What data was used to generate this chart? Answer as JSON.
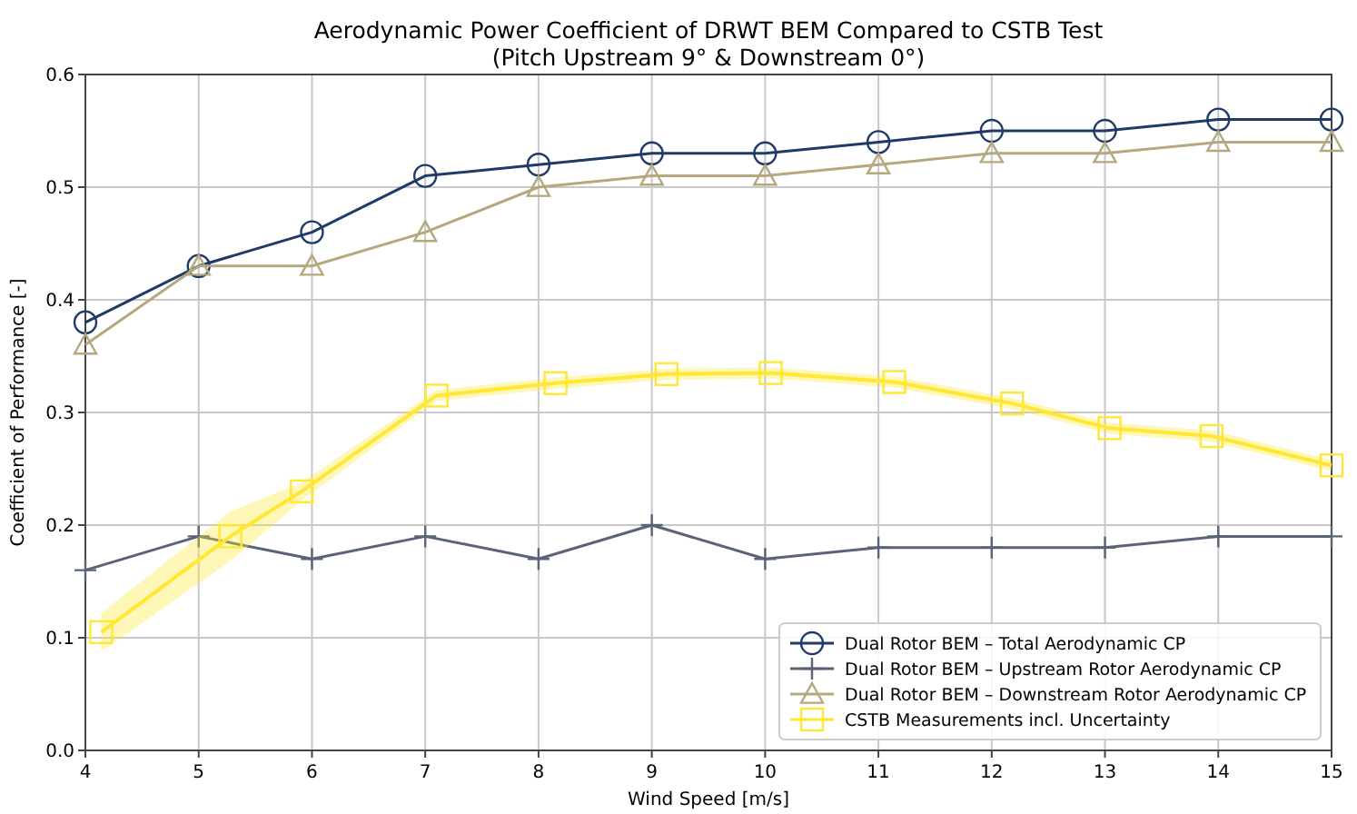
{
  "chart_data": {
    "type": "line",
    "title": "Aerodynamic Power Coefficient of DRWT BEM Compared to CSTB Test",
    "subtitle": "(Pitch Upstream 9° & Downstream 0°)",
    "xlabel": "Wind Speed [m/s]",
    "ylabel": "Coefficient of Performance [-]",
    "x": [
      4,
      5,
      6,
      7,
      8,
      9,
      10,
      11,
      12,
      13,
      14,
      15
    ],
    "xlim": [
      4,
      15
    ],
    "xticks": [
      4,
      5,
      6,
      7,
      8,
      9,
      10,
      11,
      12,
      13,
      14,
      15
    ],
    "ylim": [
      0,
      0.6
    ],
    "yticks": [
      {
        "value": 0,
        "label": "0.0"
      },
      0.1,
      0.2,
      0.3,
      0.4,
      0.5,
      0.6
    ],
    "grid": true,
    "legend": "bottom right",
    "series": [
      {
        "name": "Dual Rotor BEM – Total Aerodynamic CP",
        "color": "#1f3a68",
        "marker": "circle",
        "values": [
          0.38,
          0.43,
          0.46,
          0.51,
          0.52,
          0.53,
          0.53,
          0.54,
          0.55,
          0.55,
          0.56,
          0.56
        ]
      },
      {
        "name": "Dual Rotor BEM – Upstream Rotor Aerodynamic CP",
        "color": "#5a6378",
        "marker": "cross",
        "values": [
          0.16,
          0.19,
          0.17,
          0.19,
          0.17,
          0.2,
          0.17,
          0.18,
          0.18,
          0.18,
          0.19,
          0.19
        ]
      },
      {
        "name": "Dual Rotor BEM – Downstream Rotor Aerodynamic CP",
        "color": "#b5a87f",
        "marker": "triangle",
        "values": [
          0.36,
          0.43,
          0.43,
          0.46,
          0.5,
          0.51,
          0.51,
          0.52,
          0.53,
          0.53,
          0.54,
          0.54
        ]
      },
      {
        "name": "CSTB Measurements incl. Uncertainty",
        "color": "#ffe733",
        "marker": "square",
        "x": [
          4.14,
          5.28,
          5.91,
          7.1,
          8.15,
          9.13,
          10.05,
          11.14,
          12.18,
          13.04,
          13.94,
          15
        ],
        "values": [
          0.105,
          0.19,
          0.23,
          0.315,
          0.326,
          0.334,
          0.335,
          0.327,
          0.308,
          0.286,
          0.279,
          0.253
        ],
        "lower": [
          0.088,
          0.168,
          0.222,
          0.31,
          0.321,
          0.329,
          0.33,
          0.322,
          0.303,
          0.281,
          0.274,
          0.248
        ],
        "upper": [
          0.122,
          0.212,
          0.238,
          0.32,
          0.331,
          0.339,
          0.34,
          0.332,
          0.313,
          0.291,
          0.284,
          0.258
        ]
      }
    ]
  }
}
